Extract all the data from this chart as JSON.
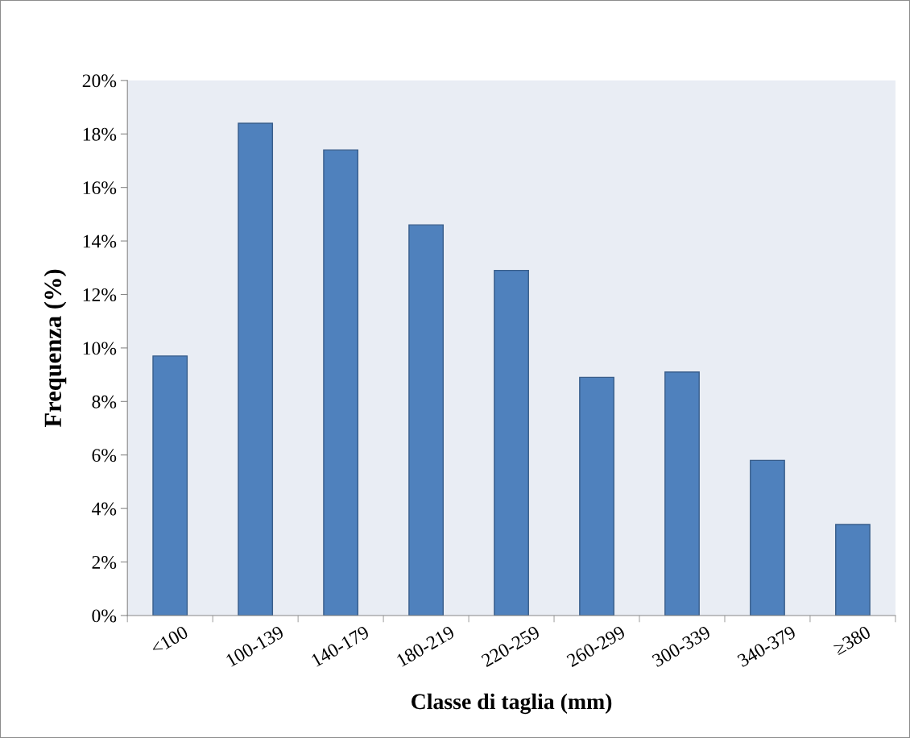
{
  "chart_data": {
    "type": "bar",
    "xlabel": "Classe di taglia (mm)",
    "ylabel": "Frequenza (%)",
    "categories": [
      "<100",
      "100-139",
      "140-179",
      "180-219",
      "220-259",
      "260-299",
      "300-339",
      "340-379",
      "≥380"
    ],
    "values": [
      9.7,
      18.4,
      17.4,
      14.6,
      12.9,
      8.9,
      9.1,
      5.8,
      3.4
    ],
    "color": "#4f81bd",
    "ylim": [
      0,
      20
    ],
    "yticks": [
      {
        "value": 0,
        "label": "0%"
      },
      {
        "value": 2,
        "label": "2%"
      },
      {
        "value": 4,
        "label": "4%"
      },
      {
        "value": 6,
        "label": "6%"
      },
      {
        "value": 8,
        "label": "8%"
      },
      {
        "value": 10,
        "label": "10%"
      },
      {
        "value": 12,
        "label": "12%"
      },
      {
        "value": 14,
        "label": "14%"
      },
      {
        "value": 16,
        "label": "16%"
      },
      {
        "value": 18,
        "label": "18%"
      },
      {
        "value": 20,
        "label": "20%"
      }
    ],
    "grid": false
  }
}
